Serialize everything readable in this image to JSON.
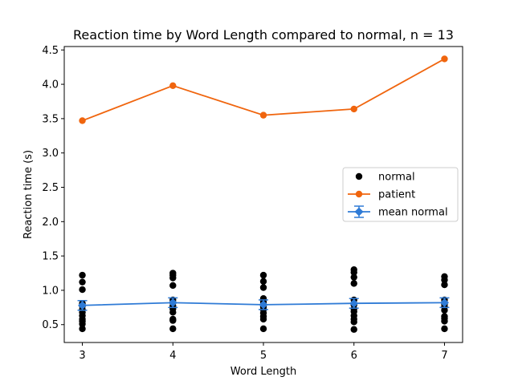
{
  "chart_data": {
    "type": "scatter",
    "title": "Reaction time by Word Length compared to normal, n = 13",
    "xlabel": "Word Length",
    "ylabel": "Reaction time (s)",
    "xlim": [
      2.8,
      7.2
    ],
    "ylim": [
      0.24,
      4.55
    ],
    "xticks": [
      3,
      4,
      5,
      6,
      7
    ],
    "yticks": [
      0.5,
      1.0,
      1.5,
      2.0,
      2.5,
      3.0,
      3.5,
      4.0,
      4.5
    ],
    "ytick_labels": [
      "0.5",
      "1.0",
      "1.5",
      "2.0",
      "2.5",
      "3.0",
      "3.5",
      "4.0",
      "4.5"
    ],
    "grid": false,
    "legend_position": "center-right",
    "series": [
      {
        "name": "normal",
        "kind": "scatter",
        "color": "#000000",
        "points": [
          [
            3,
            1.22
          ],
          [
            3,
            1.12
          ],
          [
            3,
            1.01
          ],
          [
            3,
            0.81
          ],
          [
            3,
            0.77
          ],
          [
            3,
            0.72
          ],
          [
            3,
            0.68
          ],
          [
            3,
            0.63
          ],
          [
            3,
            0.58
          ],
          [
            3,
            0.55
          ],
          [
            3,
            0.51
          ],
          [
            3,
            0.44
          ],
          [
            4,
            1.25
          ],
          [
            4,
            1.22
          ],
          [
            4,
            1.18
          ],
          [
            4,
            1.07
          ],
          [
            4,
            0.86
          ],
          [
            4,
            0.82
          ],
          [
            4,
            0.77
          ],
          [
            4,
            0.73
          ],
          [
            4,
            0.68
          ],
          [
            4,
            0.58
          ],
          [
            4,
            0.56
          ],
          [
            4,
            0.44
          ],
          [
            5,
            1.22
          ],
          [
            5,
            1.13
          ],
          [
            5,
            1.04
          ],
          [
            5,
            0.88
          ],
          [
            5,
            0.83
          ],
          [
            5,
            0.79
          ],
          [
            5,
            0.76
          ],
          [
            5,
            0.72
          ],
          [
            5,
            0.67
          ],
          [
            5,
            0.62
          ],
          [
            5,
            0.58
          ],
          [
            5,
            0.44
          ],
          [
            6,
            1.3
          ],
          [
            6,
            1.26
          ],
          [
            6,
            1.19
          ],
          [
            6,
            1.1
          ],
          [
            6,
            0.86
          ],
          [
            6,
            0.79
          ],
          [
            6,
            0.73
          ],
          [
            6,
            0.69
          ],
          [
            6,
            0.63
          ],
          [
            6,
            0.58
          ],
          [
            6,
            0.54
          ],
          [
            6,
            0.43
          ],
          [
            7,
            1.2
          ],
          [
            7,
            1.15
          ],
          [
            7,
            1.08
          ],
          [
            7,
            0.86
          ],
          [
            7,
            0.82
          ],
          [
            7,
            0.8
          ],
          [
            7,
            0.76
          ],
          [
            7,
            0.71
          ],
          [
            7,
            0.62
          ],
          [
            7,
            0.59
          ],
          [
            7,
            0.55
          ],
          [
            7,
            0.44
          ]
        ]
      },
      {
        "name": "patient",
        "kind": "line",
        "color": "#f0650e",
        "x": [
          3,
          4,
          5,
          6,
          7
        ],
        "values": [
          3.47,
          3.98,
          3.55,
          3.64,
          4.37
        ]
      },
      {
        "name": "mean normal",
        "kind": "errorbar",
        "color": "#2f7bd6",
        "x": [
          3,
          4,
          5,
          6,
          7
        ],
        "values": [
          0.78,
          0.82,
          0.79,
          0.81,
          0.82
        ],
        "errors": [
          0.07,
          0.07,
          0.07,
          0.07,
          0.07
        ]
      }
    ]
  }
}
